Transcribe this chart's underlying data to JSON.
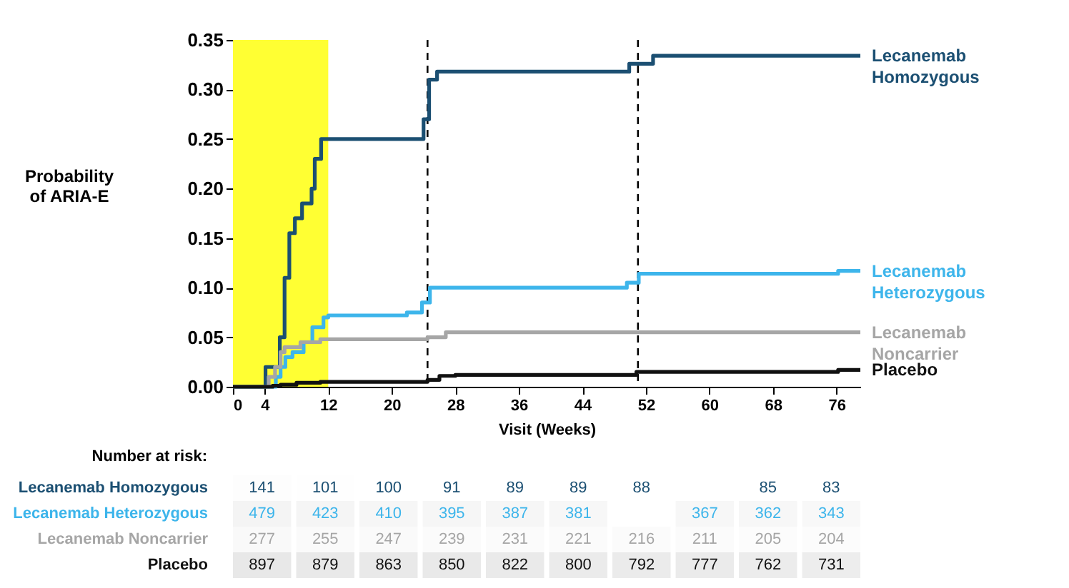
{
  "chart_data": [
    {
      "type": "step",
      "xlabel": "Visit (Weeks)",
      "ylabel": "Probability of ARIA-E",
      "xlim": [
        0,
        79
      ],
      "xticks": [
        0,
        4,
        12,
        20,
        28,
        36,
        44,
        52,
        60,
        68,
        76
      ],
      "ylim": [
        0,
        0.35
      ],
      "yticks": [
        {
          "value": 0,
          "label": "0.00"
        },
        {
          "value": 0.05,
          "label": "0.05"
        },
        {
          "value": 0.1,
          "label": "0.10"
        },
        {
          "value": 0.15,
          "label": "0.15"
        },
        {
          "value": 0.2,
          "label": "0.20"
        },
        {
          "value": 0.25,
          "label": "0.25"
        },
        {
          "value": 0.3,
          "label": "0.30"
        },
        {
          "value": 0.35,
          "label": "0.35"
        }
      ],
      "series": [
        {
          "name": "Lecanemab Homozygous",
          "color": "#1b4f72",
          "x": [
            0,
            4.1,
            5.9,
            6.5,
            7.1,
            7.8,
            8.7,
            9.9,
            10.3,
            11.1,
            24.0,
            24.7,
            25.7,
            49.9,
            52.9,
            79
          ],
          "values": [
            0,
            0.02,
            0.05,
            0.11,
            0.155,
            0.17,
            0.185,
            0.2,
            0.23,
            0.25,
            0.27,
            0.31,
            0.318,
            0.326,
            0.334,
            0.334
          ]
        },
        {
          "name": "Lecanemab Heterozygous",
          "color": "#3db5eb",
          "x": [
            0,
            5.4,
            6.0,
            6.6,
            7.5,
            8.9,
            10,
            11.4,
            12,
            21.9,
            23.8,
            24.8,
            49.6,
            51.1,
            76.2,
            79
          ],
          "values": [
            0,
            0.01,
            0.02,
            0.03,
            0.035,
            0.045,
            0.06,
            0.07,
            0.072,
            0.075,
            0.085,
            0.1,
            0.105,
            0.114,
            0.117,
            0.117
          ]
        },
        {
          "name": "Lecanemab Noncarrier",
          "color": "#a6a6a6",
          "x": [
            0,
            4.5,
            5.3,
            6,
            6.5,
            8.5,
            11,
            24.5,
            26.8,
            79
          ],
          "values": [
            0,
            0.01,
            0.02,
            0.035,
            0.04,
            0.045,
            0.048,
            0.05,
            0.055,
            0.055
          ]
        },
        {
          "name": "Placebo",
          "color": "#111111",
          "x": [
            0,
            5,
            6,
            8,
            11,
            24.5,
            26,
            28,
            50.8,
            76.2,
            79
          ],
          "values": [
            0,
            0.001,
            0.002,
            0.004,
            0.005,
            0.007,
            0.011,
            0.012,
            0.015,
            0.017,
            0.017
          ]
        }
      ],
      "bands": [
        {
          "axis": "x",
          "from": 0,
          "to": 12,
          "color": "#ffff33"
        }
      ],
      "ref_lines": [
        {
          "axis": "x",
          "value": 24.5,
          "color": "#000000",
          "line_style": "dashed"
        },
        {
          "axis": "x",
          "value": 51,
          "color": "#000000",
          "line_style": "dashed"
        }
      ]
    },
    {
      "type": "heatmap",
      "title": "Number at risk:",
      "tick_labels": "y",
      "categories": [
        "4",
        "12",
        "20",
        "28",
        "36",
        "44",
        "52",
        "60",
        "68",
        "76"
      ],
      "y_categories": [
        "Lecanemab Homozygous",
        "Lecanemab Heterozygous",
        "Lecanemab Noncarrier",
        "Placebo"
      ],
      "cells": [
        [
          141,
          101,
          100,
          91,
          89,
          89,
          88,
          null,
          85,
          83
        ],
        [
          479,
          423,
          410,
          395,
          387,
          381,
          null,
          367,
          362,
          343
        ],
        [
          277,
          255,
          247,
          239,
          231,
          221,
          216,
          211,
          205,
          204
        ],
        [
          897,
          879,
          863,
          850,
          822,
          800,
          792,
          777,
          762,
          731
        ]
      ],
      "cell_labels": [
        [
          "141",
          "101",
          "100",
          "91",
          "89",
          "89",
          "88",
          null,
          "85",
          "83"
        ],
        [
          "479",
          "423",
          "410",
          "395",
          "387",
          "381",
          null,
          "367",
          "362",
          "343"
        ],
        [
          "277",
          "255",
          "247",
          "239",
          "231",
          "221",
          "216",
          "211",
          "205",
          "204"
        ],
        [
          "897",
          "879",
          "863",
          "850",
          "822",
          "800",
          "792",
          "777",
          "762",
          "731"
        ]
      ]
    }
  ]
}
